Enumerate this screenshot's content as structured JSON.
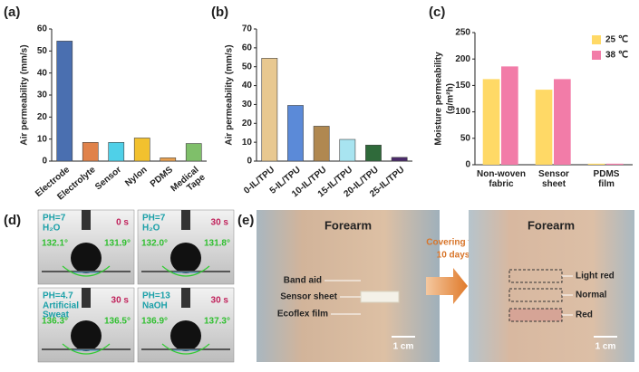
{
  "chart_data": [
    {
      "type": "bar",
      "panel_label": "(a)",
      "ylabel": "Air permeability (mm/s)",
      "categories": [
        [
          "Electrode"
        ],
        [
          "Electrolyte"
        ],
        [
          "Sensor"
        ],
        [
          "Nylon"
        ],
        [
          "PDMS"
        ],
        [
          "Medical",
          "Tape"
        ]
      ],
      "values": [
        54.5,
        8.5,
        8.5,
        10.5,
        1.5,
        8
      ],
      "colors": [
        "#4a6fb0",
        "#e0824a",
        "#4fd0e8",
        "#f2c12e",
        "#e8a050",
        "#7fbf6a"
      ],
      "ylim": [
        0,
        60
      ],
      "yticks": [
        0,
        10,
        20,
        30,
        40,
        50,
        60
      ]
    },
    {
      "type": "bar",
      "panel_label": "(b)",
      "ylabel": "Air permeability (mm/s)",
      "categories": [
        [
          "0-IL/TPU"
        ],
        [
          "5-IL/TPU"
        ],
        [
          "10-IL/TPU"
        ],
        [
          "15-IL/TPU"
        ],
        [
          "20-IL/TPU"
        ],
        [
          "25-IL/TPU"
        ]
      ],
      "values": [
        54.5,
        29.5,
        18.5,
        11.5,
        8.5,
        2
      ],
      "colors": [
        "#e8c890",
        "#5b8ad8",
        "#b08850",
        "#a8e4f0",
        "#2f6a3a",
        "#4a2a6a"
      ],
      "ylim": [
        0,
        70
      ],
      "yticks": [
        0,
        10,
        20,
        30,
        40,
        50,
        60,
        70
      ]
    },
    {
      "type": "bar",
      "panel_label": "(c)",
      "ylabel": "Moisture permeability",
      "ylabel_unit": "(g/m²h)",
      "categories": [
        [
          "Non-woven",
          "fabric"
        ],
        [
          "Sensor",
          "sheet"
        ],
        [
          "PDMS",
          "film"
        ]
      ],
      "series": [
        {
          "name": "25 ℃",
          "color": "#ffd966",
          "values": [
            162,
            142,
            2
          ]
        },
        {
          "name": "38 ℃",
          "color": "#f27ca8",
          "values": [
            186,
            162,
            2
          ]
        }
      ],
      "legend": "upper right",
      "ylim": [
        0,
        250
      ],
      "yticks": [
        0,
        50,
        100,
        150,
        200,
        250
      ]
    }
  ],
  "panel_d": {
    "label": "(d)",
    "tiles": [
      {
        "ph": "PH=7",
        "medium": [
          "H₂O"
        ],
        "time": "0 s",
        "left_angle": "132.1°",
        "right_angle": "131.9°"
      },
      {
        "ph": "PH=7",
        "medium": [
          "H₂O"
        ],
        "time": "30 s",
        "left_angle": "132.0°",
        "right_angle": "131.8°"
      },
      {
        "ph": "PH=4.7",
        "medium": [
          "Artificial",
          "Sweat"
        ],
        "time": "30 s",
        "left_angle": "136.3°",
        "right_angle": "136.5°"
      },
      {
        "ph": "PH=13",
        "medium": [
          "NaOH"
        ],
        "time": "30 s",
        "left_angle": "136.9°",
        "right_angle": "137.3°"
      }
    ]
  },
  "panel_e": {
    "label": "(e)",
    "left": {
      "title": "Forearm",
      "labels": [
        "Band aid",
        "Sensor sheet",
        "Ecoflex film"
      ],
      "scale": "1 cm"
    },
    "arrow_text": [
      "Covering for",
      "10 days"
    ],
    "right": {
      "title": "Forearm",
      "labels": [
        "Light red",
        "Normal",
        "Red"
      ],
      "scale": "1 cm"
    }
  }
}
